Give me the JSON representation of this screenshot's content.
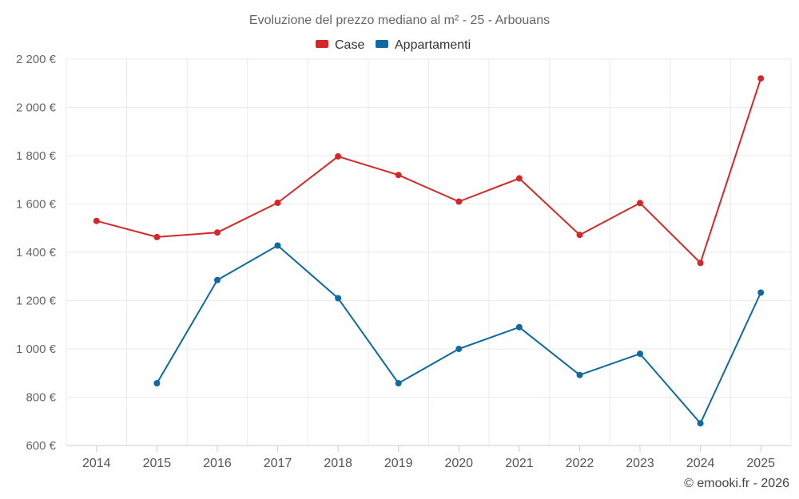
{
  "chart_data": {
    "type": "line",
    "title": "Evoluzione del prezzo mediano al m² - 25 - Arbouans",
    "categories": [
      "2014",
      "2015",
      "2016",
      "2017",
      "2018",
      "2019",
      "2020",
      "2021",
      "2022",
      "2023",
      "2024",
      "2025"
    ],
    "series": [
      {
        "name": "Case",
        "color": "#d62728",
        "values": [
          1530,
          1463,
          1482,
          1605,
          1797,
          1720,
          1610,
          1706,
          1472,
          1604,
          1356,
          2120
        ]
      },
      {
        "name": "Appartamenti",
        "color": "#0e6aa0",
        "values": [
          null,
          858,
          1285,
          1428,
          1210,
          858,
          1000,
          1090,
          892,
          980,
          692,
          1233
        ]
      }
    ],
    "y_ticks": [
      "600 €",
      "800 €",
      "1 000 €",
      "1 200 €",
      "1 400 €",
      "1 600 €",
      "1 800 €",
      "2 000 €",
      "2 200 €"
    ],
    "y_tick_values": [
      600,
      800,
      1000,
      1200,
      1400,
      1600,
      1800,
      2000,
      2200
    ],
    "ylim": [
      600,
      2200
    ],
    "grid": true,
    "legend_position": "top-center",
    "credit": "© emooki.fr - 2026"
  }
}
